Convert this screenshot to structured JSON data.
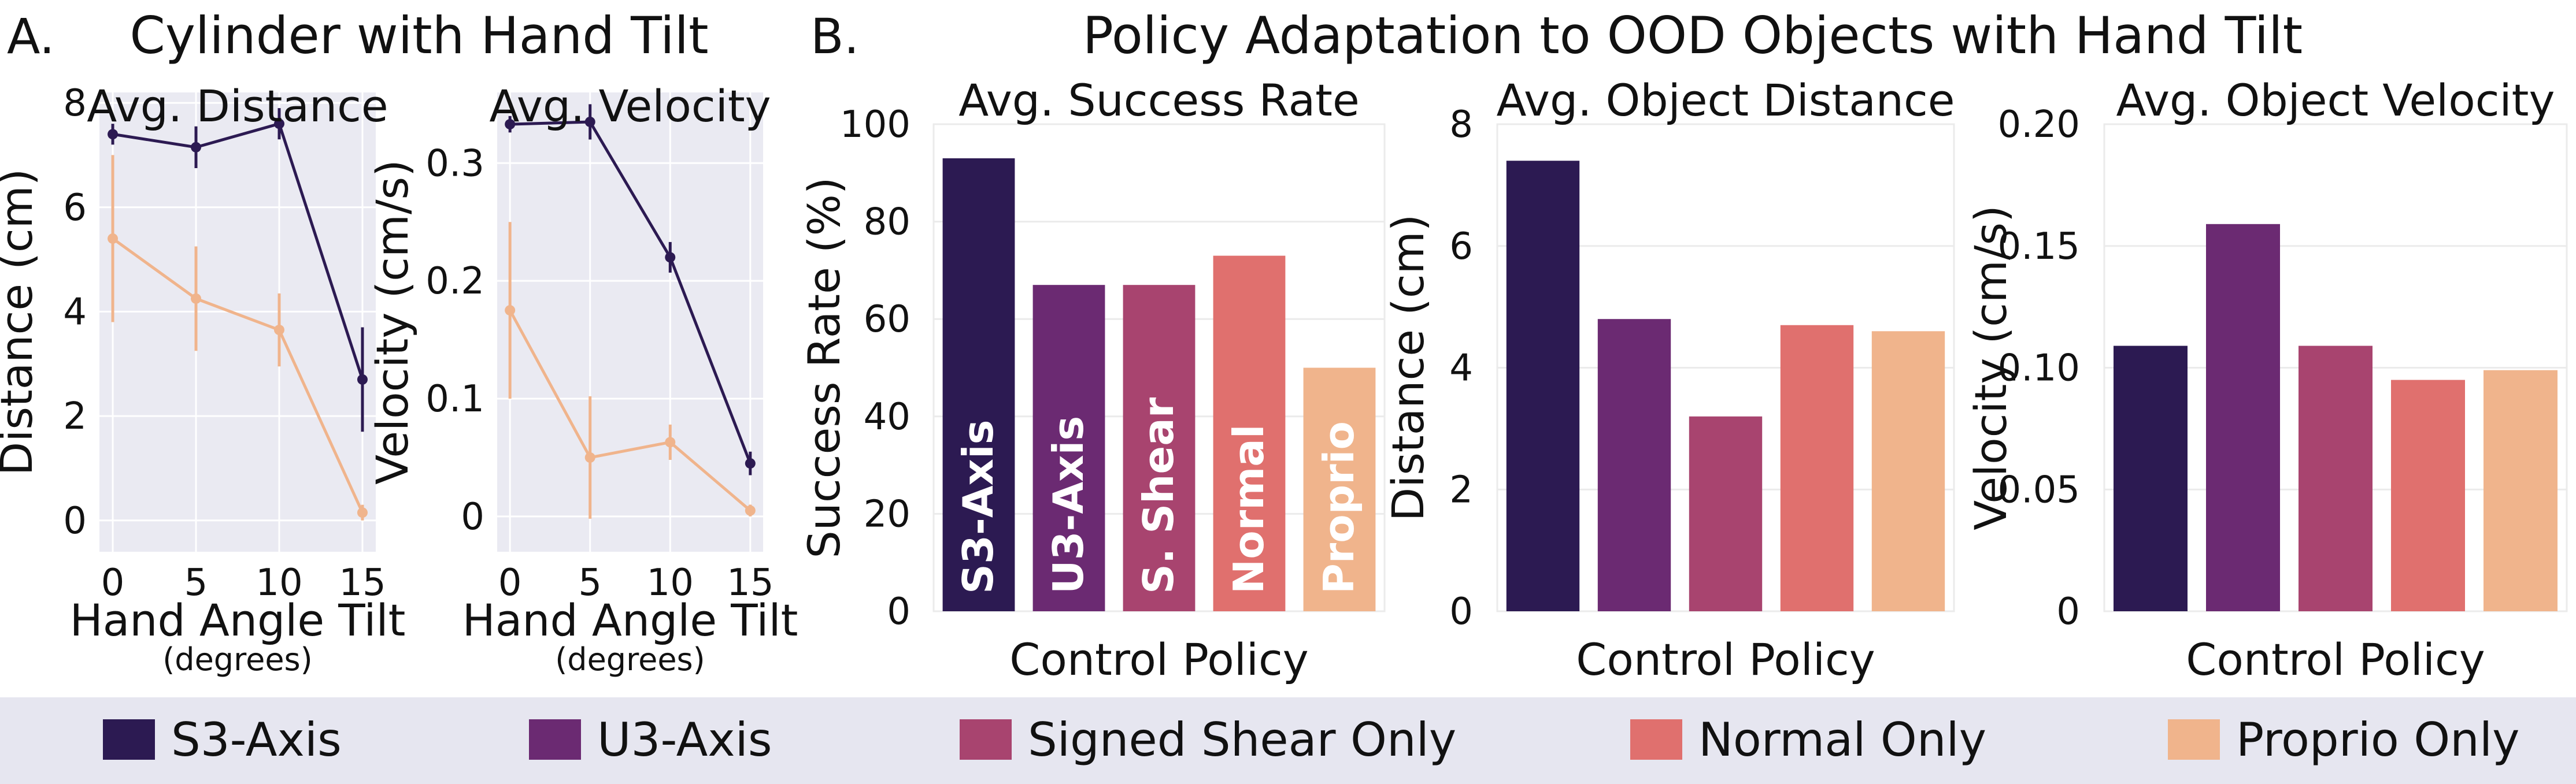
{
  "figure": {
    "panel_a_letter": "A.",
    "panel_a_title": "Cylinder with Hand Tilt",
    "panel_b_letter": "B.",
    "panel_b_title": "Policy Adaptation to OOD Objects with Hand Tilt"
  },
  "colors": {
    "s3": "#2c1a52",
    "u3": "#6b2a72",
    "shear": "#a8446f",
    "normal": "#e0706e",
    "proprio": "#f0b48c",
    "panel_bg": "#eaeaf2",
    "legend_bg": "#e6e6f0",
    "grid": "#ffffff",
    "grid_light": "#ebebeb"
  },
  "legend": [
    {
      "label": "S3-Axis",
      "color": "#2c1a52"
    },
    {
      "label": "U3-Axis",
      "color": "#6b2a72"
    },
    {
      "label": "Signed Shear Only",
      "color": "#a8446f"
    },
    {
      "label": "Normal Only",
      "color": "#e0706e"
    },
    {
      "label": "Proprio Only",
      "color": "#f0b48c"
    }
  ],
  "chart_data": [
    {
      "type": "line",
      "title": "Avg. Distance",
      "xlabel": "Hand Angle Tilt",
      "xlabel_sub": "(degrees)",
      "ylabel": "Distance (cm)",
      "x": [
        0,
        5,
        10,
        15
      ],
      "xticks": [
        "0",
        "5",
        "10",
        "15"
      ],
      "yticks": [
        "0",
        "2",
        "4",
        "6",
        "8"
      ],
      "xlim": [
        -0.8,
        15.8
      ],
      "ylim": [
        -0.6,
        8.2
      ],
      "series": [
        {
          "name": "S3-Axis",
          "color": "#2c1a52",
          "values": [
            7.4,
            7.15,
            7.6,
            2.7
          ],
          "errors": [
            0.2,
            0.4,
            0.3,
            1.0
          ]
        },
        {
          "name": "Proprio Only",
          "color": "#f0b48c",
          "values": [
            5.4,
            4.25,
            3.65,
            0.15
          ],
          "errors": [
            1.6,
            1.0,
            0.7,
            0.15
          ]
        }
      ]
    },
    {
      "type": "line",
      "title": "Avg. Velocity",
      "xlabel": "Hand Angle Tilt",
      "xlabel_sub": "(degrees)",
      "ylabel": "Velocity (cm/s)",
      "x": [
        0,
        5,
        10,
        15
      ],
      "xticks": [
        "0",
        "5",
        "10",
        "15"
      ],
      "yticks": [
        "0",
        "0.1",
        "0.2",
        "0.3"
      ],
      "xlim": [
        -0.8,
        15.8
      ],
      "ylim": [
        -0.03,
        0.36
      ],
      "series": [
        {
          "name": "S3-Axis",
          "color": "#2c1a52",
          "values": [
            0.333,
            0.335,
            0.22,
            0.045
          ],
          "errors": [
            0.007,
            0.015,
            0.013,
            0.01
          ]
        },
        {
          "name": "Proprio Only",
          "color": "#f0b48c",
          "values": [
            0.175,
            0.05,
            0.063,
            0.005
          ],
          "errors": [
            0.075,
            0.052,
            0.015,
            0.005
          ]
        }
      ]
    },
    {
      "type": "bar",
      "title": "Avg. Success Rate",
      "xlabel": "Control Policy",
      "ylabel": "Success Rate (%)",
      "categories": [
        "S3-Axis",
        "U3-Axis",
        "S. Shear",
        "Normal",
        "Proprio"
      ],
      "values": [
        93,
        67,
        67,
        73,
        50
      ],
      "colors": [
        "#2c1a52",
        "#6b2a72",
        "#a8446f",
        "#e0706e",
        "#f0b48c"
      ],
      "yticks": [
        "0",
        "20",
        "40",
        "60",
        "80",
        "100"
      ],
      "ylim": [
        0,
        100
      ],
      "bar_labels": true
    },
    {
      "type": "bar",
      "title": "Avg. Object Distance",
      "xlabel": "Control Policy",
      "ylabel": "Distance (cm)",
      "categories": [
        "S3-Axis",
        "U3-Axis",
        "Signed Shear Only",
        "Normal Only",
        "Proprio Only"
      ],
      "values": [
        7.4,
        4.8,
        3.2,
        4.7,
        4.6
      ],
      "colors": [
        "#2c1a52",
        "#6b2a72",
        "#a8446f",
        "#e0706e",
        "#f0b48c"
      ],
      "yticks": [
        "0",
        "2",
        "4",
        "6",
        "8"
      ],
      "ylim": [
        0,
        8
      ],
      "bar_labels": false
    },
    {
      "type": "bar",
      "title": "Avg. Object Velocity",
      "xlabel": "Control Policy",
      "ylabel": "Velocity (cm/s)",
      "categories": [
        "S3-Axis",
        "U3-Axis",
        "Signed Shear Only",
        "Normal Only",
        "Proprio Only"
      ],
      "values": [
        0.109,
        0.159,
        0.109,
        0.095,
        0.099
      ],
      "colors": [
        "#2c1a52",
        "#6b2a72",
        "#a8446f",
        "#e0706e",
        "#f0b48c"
      ],
      "yticks": [
        "0",
        "0.05",
        "0.10",
        "0.15",
        "0.20"
      ],
      "ylim": [
        0,
        0.2
      ],
      "bar_labels": false
    }
  ]
}
